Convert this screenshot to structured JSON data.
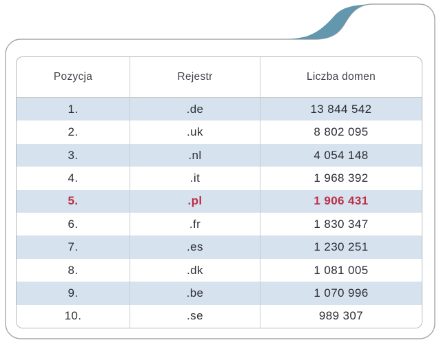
{
  "table": {
    "columns": [
      "Pozycja",
      "Rejestr",
      "Liczba domen"
    ],
    "rows": [
      {
        "position": "1.",
        "registry": ".de",
        "domains": "13 844 542",
        "highlight": false
      },
      {
        "position": "2.",
        "registry": ".uk",
        "domains": "8 802 095",
        "highlight": false
      },
      {
        "position": "3.",
        "registry": ".nl",
        "domains": "4 054 148",
        "highlight": false
      },
      {
        "position": "4.",
        "registry": ".it",
        "domains": "1 968 392",
        "highlight": false
      },
      {
        "position": "5.",
        "registry": ".pl",
        "domains": "1 906 431",
        "highlight": true
      },
      {
        "position": "6.",
        "registry": ".fr",
        "domains": "1 830 347",
        "highlight": false
      },
      {
        "position": "7.",
        "registry": ".es",
        "domains": "1 230 251",
        "highlight": false
      },
      {
        "position": "8.",
        "registry": ".dk",
        "domains": "1 081 005",
        "highlight": false
      },
      {
        "position": "9.",
        "registry": ".be",
        "domains": "1 070 996",
        "highlight": false
      },
      {
        "position": "10.",
        "registry": ".se",
        "domains": "989 307",
        "highlight": false
      }
    ]
  },
  "colors": {
    "row_alt_background": "#d6e3ee",
    "highlight_text": "#bc2d47",
    "swoosh_blue": "#6297ae",
    "frame_border": "#a9a9a9",
    "table_border": "#b4b7ba",
    "header_text": "#42424a",
    "body_text": "#2c2c34"
  }
}
